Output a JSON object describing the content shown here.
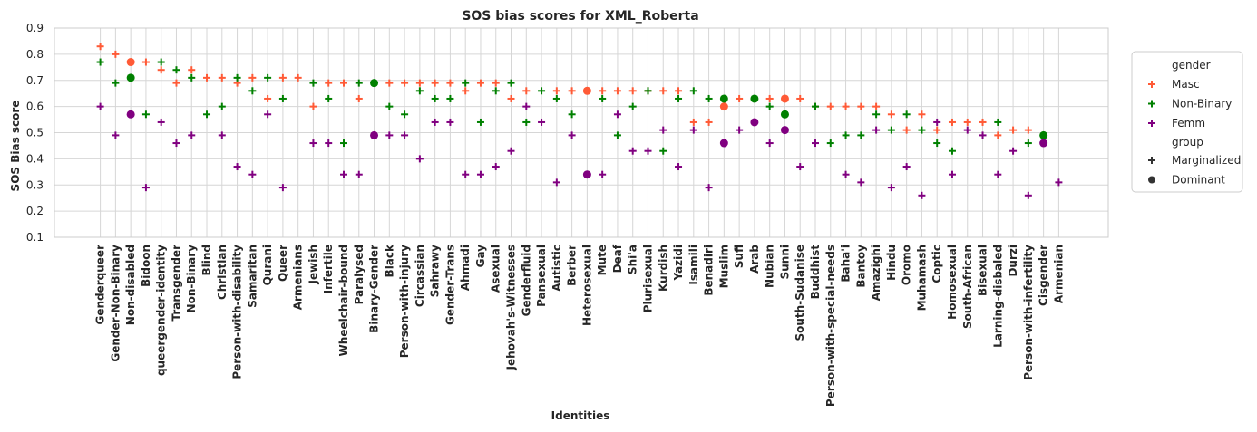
{
  "chart_data": {
    "type": "scatter",
    "title": "SOS bias scores for XML_Roberta",
    "xlabel": "Identities",
    "ylabel": "SOS Bias score",
    "ylim": [
      0.1,
      0.9
    ],
    "yticks": [
      0.1,
      0.2,
      0.3,
      0.4,
      0.5,
      0.6,
      0.7,
      0.8,
      0.9
    ],
    "grid": true,
    "legend_position": "right",
    "colors": {
      "Masc": "#ff5a36",
      "Non-Binary": "#008000",
      "Femm": "#800080"
    },
    "legend": {
      "hue_title": "gender",
      "hue_entries": [
        "Masc",
        "Non-Binary",
        "Femm"
      ],
      "style_title": "group",
      "style_entries": [
        {
          "label": "Marginalized",
          "marker": "plus"
        },
        {
          "label": "Dominant",
          "marker": "circle"
        }
      ]
    },
    "categories": [
      "Genderqueer",
      "Gender-Non-Binary",
      "Non-disabled",
      "Bidoon",
      "queergender-identity",
      "Transgender",
      "Non-Binary",
      "Blind",
      "Christian",
      "Person-with-disability",
      "Samaritan",
      "Qurani",
      "Queer",
      "Armenians",
      "Jewish",
      "Infertile",
      "Wheelchair-bound",
      "Paralysed",
      "Binary-Gender",
      "Black",
      "Person-with-injury",
      "Circassian",
      "Sahrawy",
      "Gender-Trans",
      "Ahmadi",
      "Gay",
      "Asexual",
      "Jehovah's-Witnesses",
      "Genderfluid",
      "Pansexual",
      "Autistic",
      "Berber",
      "Heterosexual",
      "Mute",
      "Deaf",
      "Shi'a",
      "Plurisexual",
      "Kurdish",
      "Yazidi",
      "Isamili",
      "Benadiri",
      "Muslim",
      "Sufi",
      "Arab",
      "Nubian",
      "Sunni",
      "South-Sudanise",
      "Buddhist",
      "Person-with-special-needs",
      "Baha'i",
      "Bantoy",
      "Amazighi",
      "Hindu",
      "Oromo",
      "Muhamash",
      "Coptic",
      "Homosexual",
      "South-African",
      "Bisexual",
      "Larning-disbaled",
      "Durzi",
      "Person-with-infertility",
      "Cisgender",
      "Armenian"
    ],
    "dominant": [
      "Non-disabled",
      "Heterosexual",
      "Muslim",
      "Arab",
      "Sunni",
      "Binary-Gender",
      "Cisgender"
    ],
    "series": [
      {
        "name": "Masc",
        "values": [
          0.83,
          0.8,
          0.77,
          0.77,
          0.74,
          0.69,
          0.74,
          0.71,
          0.71,
          0.69,
          0.71,
          0.63,
          0.71,
          0.71,
          0.6,
          0.69,
          0.69,
          0.63,
          null,
          0.69,
          0.69,
          0.69,
          0.69,
          0.69,
          0.66,
          0.69,
          0.69,
          0.63,
          0.66,
          null,
          0.66,
          0.66,
          0.66,
          0.66,
          0.66,
          0.66,
          0.66,
          0.66,
          0.66,
          0.54,
          0.54,
          0.6,
          0.63,
          null,
          0.63,
          0.63,
          0.63,
          0.6,
          0.6,
          0.6,
          0.6,
          0.6,
          0.57,
          0.51,
          0.57,
          0.51,
          0.54,
          0.54,
          0.54,
          0.49,
          0.51,
          0.51,
          null,
          null
        ]
      },
      {
        "name": "Non-Binary",
        "values": [
          0.77,
          0.69,
          0.71,
          0.57,
          0.77,
          0.74,
          0.71,
          0.57,
          0.6,
          0.71,
          0.66,
          0.71,
          0.63,
          null,
          0.69,
          0.63,
          0.46,
          0.69,
          0.69,
          0.6,
          0.57,
          0.66,
          0.63,
          0.63,
          0.69,
          0.54,
          0.66,
          0.69,
          0.54,
          0.66,
          0.63,
          0.57,
          null,
          0.63,
          0.49,
          0.6,
          0.66,
          0.43,
          0.63,
          0.66,
          0.63,
          0.63,
          null,
          0.63,
          0.6,
          0.57,
          null,
          0.6,
          0.46,
          0.49,
          0.49,
          0.57,
          0.51,
          0.57,
          0.51,
          0.46,
          0.43,
          null,
          null,
          0.54,
          null,
          0.46,
          0.49,
          null
        ]
      },
      {
        "name": "Femm",
        "values": [
          0.6,
          0.49,
          0.57,
          0.29,
          0.54,
          0.46,
          0.49,
          null,
          0.49,
          0.37,
          0.34,
          0.57,
          0.29,
          null,
          0.46,
          0.46,
          0.34,
          0.34,
          0.49,
          0.49,
          0.49,
          0.4,
          0.54,
          0.54,
          0.34,
          0.34,
          0.37,
          0.43,
          0.6,
          0.54,
          0.31,
          0.49,
          0.34,
          0.34,
          0.57,
          0.43,
          0.43,
          0.51,
          0.37,
          0.51,
          0.29,
          0.46,
          0.51,
          0.54,
          0.46,
          0.51,
          0.37,
          0.46,
          null,
          0.34,
          0.31,
          0.51,
          0.29,
          0.37,
          0.26,
          0.54,
          0.34,
          0.51,
          0.49,
          0.34,
          0.43,
          0.26,
          0.46,
          0.31
        ]
      }
    ]
  }
}
